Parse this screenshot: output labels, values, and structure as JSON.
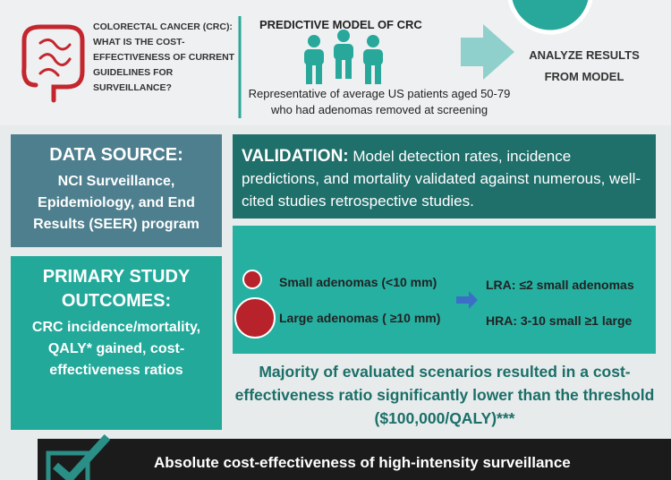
{
  "header": {
    "question_title": "COLORECTAL CANCER (CRC):",
    "question": "WHAT IS THE COST-EFFECTIVENESS OF CURRENT GUIDELINES FOR SURVEILLANCE?",
    "model_title": "PREDICTIVE MODEL OF CRC",
    "model_description": "Representative of average US patients aged 50-79 who had adenomas removed at screening",
    "next_step": "ANALYZE RESULTS FROM MODEL"
  },
  "data_source": {
    "title": "DATA SOURCE:",
    "text": "NCI Surveillance, Epidemiology, and End Results (SEER) program"
  },
  "validation": {
    "label": "VALIDATION:",
    "text": "Model detection rates, incidence predictions, and mortality validated against numerous, well-cited studies retrospective studies."
  },
  "outcomes": {
    "title": "PRIMARY STUDY OUTCOMES:",
    "text": "CRC incidence/mortality, QALY* gained, cost-effectiveness ratios"
  },
  "adenomas": {
    "small": "Small adenomas (<10 mm)",
    "large": "Large adenomas ( ≥10 mm)",
    "lra": "LRA: ≤2 small adenomas",
    "hra": "HRA: 3-10 small ≥1 large"
  },
  "result": "Majority of evaluated scenarios resulted in a cost-effectiveness ratio significantly lower than the threshold ($100,000/QALY)***",
  "conclusion": "Absolute cost-effectiveness of high-intensity surveillance"
}
